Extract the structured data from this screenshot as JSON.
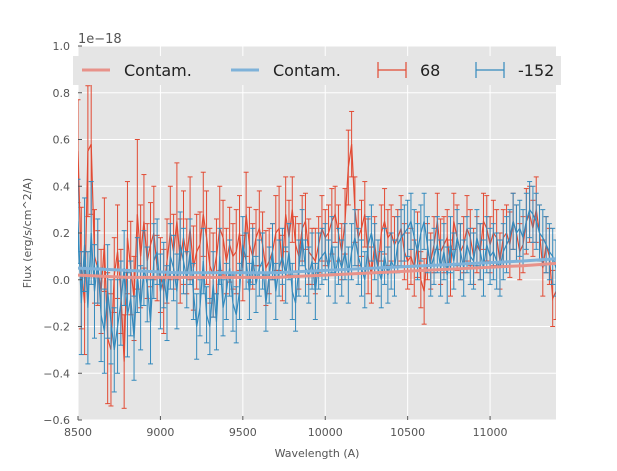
{
  "chart_data": {
    "type": "line",
    "xlabel": "Wavelength (A)",
    "ylabel": "Flux (erg/s/cm^2/A)",
    "offset_text": "1e−18",
    "xlim": [
      8500,
      11400
    ],
    "ylim": [
      -0.6,
      1.0
    ],
    "x_ticks": [
      8500,
      9000,
      9500,
      10000,
      10500,
      11000
    ],
    "x_tick_labels": [
      "8500",
      "9000",
      "9500",
      "10000",
      "10500",
      "11000"
    ],
    "y_ticks": [
      -0.6,
      -0.4,
      -0.2,
      0.0,
      0.2,
      0.4,
      0.6,
      0.8,
      1.0
    ],
    "y_tick_labels": [
      "−0.6",
      "−0.4",
      "−0.2",
      "0.0",
      "0.2",
      "0.4",
      "0.6",
      "0.8",
      "1.0"
    ],
    "grid": true,
    "legend_placement": "top",
    "legend": [
      {
        "label": "Contam.",
        "kind": "line",
        "color": "#E8928A"
      },
      {
        "label": "Contam.",
        "kind": "line",
        "color": "#7FB2D9"
      },
      {
        "label": "68",
        "kind": "errorbar",
        "color": "#E24A33"
      },
      {
        "label": "-152",
        "kind": "errorbar",
        "color": "#348ABD"
      }
    ],
    "series": [
      {
        "name": "68",
        "color": "#E24A33",
        "kind": "errorbar",
        "x": [
          8500,
          8520,
          8540,
          8560,
          8580,
          8600,
          8620,
          8640,
          8660,
          8680,
          8700,
          8720,
          8740,
          8760,
          8780,
          8800,
          8820,
          8840,
          8860,
          8880,
          8900,
          8920,
          8940,
          8960,
          8980,
          9000,
          9020,
          9040,
          9060,
          9080,
          9100,
          9120,
          9140,
          9160,
          9180,
          9200,
          9220,
          9240,
          9260,
          9280,
          9300,
          9320,
          9340,
          9360,
          9380,
          9400,
          9420,
          9440,
          9460,
          9480,
          9500,
          9520,
          9540,
          9560,
          9580,
          9600,
          9620,
          9640,
          9660,
          9680,
          9700,
          9720,
          9740,
          9760,
          9780,
          9800,
          9820,
          9840,
          9860,
          9880,
          9900,
          9920,
          9940,
          9960,
          9980,
          10000,
          10020,
          10040,
          10060,
          10080,
          10100,
          10120,
          10140,
          10160,
          10180,
          10200,
          10220,
          10240,
          10260,
          10280,
          10300,
          10320,
          10340,
          10360,
          10380,
          10400,
          10420,
          10440,
          10460,
          10480,
          10500,
          10520,
          10540,
          10560,
          10580,
          10600,
          10620,
          10640,
          10660,
          10680,
          10700,
          10720,
          10740,
          10760,
          10780,
          10800,
          10820,
          10840,
          10860,
          10880,
          10900,
          10920,
          10940,
          10960,
          10980,
          11000,
          11020,
          11040,
          11060,
          11080,
          11100,
          11120,
          11140,
          11160,
          11180,
          11200,
          11220,
          11240,
          11260,
          11280,
          11300,
          11320,
          11340,
          11360,
          11380,
          11400
        ],
        "y": [
          0.55,
          0.05,
          -0.1,
          0.55,
          0.58,
          0.1,
          0.05,
          -0.05,
          0.15,
          -0.25,
          -0.3,
          0.02,
          0.12,
          -0.05,
          -0.35,
          0.18,
          0.05,
          -0.08,
          0.28,
          0.1,
          0.25,
          0.08,
          0.15,
          0.2,
          0.05,
          0.02,
          -0.05,
          0.08,
          0.2,
          0.12,
          0.25,
          0.08,
          0.18,
          0.1,
          0.22,
          0.05,
          0.12,
          0.15,
          0.28,
          0.18,
          0.06,
          0.02,
          0.1,
          0.22,
          0.18,
          0.08,
          0.15,
          0.1,
          0.12,
          0.2,
          0.05,
          0.28,
          0.15,
          0.1,
          0.18,
          0.22,
          0.15,
          0.05,
          0.08,
          0.12,
          0.2,
          0.22,
          0.05,
          0.28,
          0.18,
          0.3,
          0.15,
          0.1,
          0.22,
          0.25,
          0.12,
          0.1,
          0.08,
          0.15,
          0.22,
          0.18,
          0.2,
          0.25,
          0.28,
          0.2,
          0.12,
          0.25,
          0.48,
          0.58,
          0.3,
          0.18,
          0.22,
          0.28,
          0.1,
          0.02,
          0.15,
          0.05,
          0.2,
          0.25,
          0.18,
          0.2,
          0.15,
          0.18,
          0.22,
          0.12,
          0.08,
          0.1,
          0.05,
          0.15,
          0.0,
          -0.05,
          0.12,
          0.08,
          0.15,
          0.25,
          0.12,
          0.15,
          0.18,
          0.05,
          0.25,
          0.18,
          0.12,
          0.15,
          0.22,
          0.18,
          0.1,
          0.15,
          0.12,
          0.25,
          0.22,
          0.15,
          0.2,
          0.18,
          0.08,
          0.18,
          0.2,
          0.15,
          0.25,
          0.2,
          0.12,
          0.15,
          0.25,
          0.28,
          0.22,
          0.3,
          0.2,
          0.05,
          0.15,
          0.1,
          -0.08,
          -0.05
        ],
        "err": [
          0.22,
          0.26,
          0.22,
          0.28,
          0.3,
          0.2,
          0.16,
          0.18,
          0.2,
          0.28,
          0.24,
          0.16,
          0.2,
          0.18,
          0.2,
          0.24,
          0.2,
          0.18,
          0.32,
          0.22,
          0.2,
          0.16,
          0.18,
          0.2,
          0.14,
          0.16,
          0.18,
          0.18,
          0.2,
          0.16,
          0.25,
          0.18,
          0.2,
          0.16,
          0.22,
          0.18,
          0.16,
          0.14,
          0.18,
          0.2,
          0.16,
          0.18,
          0.16,
          0.18,
          0.16,
          0.14,
          0.16,
          0.14,
          0.18,
          0.16,
          0.14,
          0.18,
          0.16,
          0.14,
          0.12,
          0.16,
          0.14,
          0.16,
          0.14,
          0.12,
          0.16,
          0.18,
          0.14,
          0.16,
          0.16,
          0.14,
          0.12,
          0.14,
          0.14,
          0.12,
          0.14,
          0.12,
          0.14,
          0.12,
          0.14,
          0.12,
          0.12,
          0.14,
          0.12,
          0.12,
          0.12,
          0.14,
          0.16,
          0.14,
          0.14,
          0.12,
          0.12,
          0.14,
          0.16,
          0.12,
          0.12,
          0.12,
          0.12,
          0.14,
          0.12,
          0.12,
          0.12,
          0.12,
          0.14,
          0.12,
          0.12,
          0.12,
          0.12,
          0.14,
          0.12,
          0.14,
          0.12,
          0.12,
          0.12,
          0.12,
          0.14,
          0.12,
          0.12,
          0.12,
          0.12,
          0.14,
          0.12,
          0.12,
          0.14,
          0.12,
          0.12,
          0.12,
          0.12,
          0.12,
          0.14,
          0.12,
          0.14,
          0.12,
          0.12,
          0.12,
          0.12,
          0.14,
          0.12,
          0.12,
          0.12,
          0.12,
          0.14,
          0.12,
          0.12,
          0.14,
          0.12,
          0.12,
          0.12,
          0.12,
          0.12,
          0.12
        ]
      },
      {
        "name": "-152",
        "color": "#348ABD",
        "kind": "errorbar",
        "x": [
          8500,
          8520,
          8540,
          8560,
          8580,
          8600,
          8620,
          8640,
          8660,
          8680,
          8700,
          8720,
          8740,
          8760,
          8780,
          8800,
          8820,
          8840,
          8860,
          8880,
          8900,
          8920,
          8940,
          8960,
          8980,
          9000,
          9020,
          9040,
          9060,
          9080,
          9100,
          9120,
          9140,
          9160,
          9180,
          9200,
          9220,
          9240,
          9260,
          9280,
          9300,
          9320,
          9340,
          9360,
          9380,
          9400,
          9420,
          9440,
          9460,
          9480,
          9500,
          9520,
          9540,
          9560,
          9580,
          9600,
          9620,
          9640,
          9660,
          9680,
          9700,
          9720,
          9740,
          9760,
          9780,
          9800,
          9820,
          9840,
          9860,
          9880,
          9900,
          9920,
          9940,
          9960,
          9980,
          10000,
          10020,
          10040,
          10060,
          10080,
          10100,
          10120,
          10140,
          10160,
          10180,
          10200,
          10220,
          10240,
          10260,
          10280,
          10300,
          10320,
          10340,
          10360,
          10380,
          10400,
          10420,
          10440,
          10460,
          10480,
          10500,
          10520,
          10540,
          10560,
          10580,
          10600,
          10620,
          10640,
          10660,
          10680,
          10700,
          10720,
          10740,
          10760,
          10780,
          10800,
          10820,
          10840,
          10860,
          10880,
          10900,
          10920,
          10940,
          10960,
          10980,
          11000,
          11020,
          11040,
          11060,
          11080,
          11100,
          11120,
          11140,
          11160,
          11180,
          11200,
          11220,
          11240,
          11260,
          11280,
          11300,
          11320,
          11340,
          11360,
          11380,
          11400
        ],
        "y": [
          0.25,
          -0.1,
          0.15,
          -0.12,
          0.2,
          -0.05,
          0.08,
          -0.15,
          -0.22,
          -0.05,
          -0.18,
          -0.3,
          -0.2,
          -0.1,
          0.05,
          -0.15,
          -0.08,
          -0.25,
          0.02,
          -0.12,
          0.05,
          -0.02,
          -0.18,
          0.08,
          0.12,
          -0.05,
          0.02,
          -0.1,
          0.1,
          0.05,
          -0.05,
          0.15,
          0.08,
          0.0,
          0.12,
          -0.05,
          -0.2,
          -0.12,
          0.08,
          -0.15,
          -0.2,
          -0.02,
          -0.18,
          0.1,
          -0.12,
          -0.05,
          0.05,
          -0.1,
          -0.15,
          -0.05,
          0.15,
          0.08,
          -0.05,
          0.1,
          -0.02,
          0.05,
          0.08,
          -0.1,
          0.02,
          0.12,
          -0.05,
          0.05,
          0.1,
          0.02,
          0.12,
          -0.05,
          -0.1,
          0.05,
          0.18,
          0.05,
          0.02,
          0.08,
          -0.05,
          0.08,
          0.1,
          0.12,
          0.05,
          0.15,
          0.02,
          0.1,
          0.05,
          0.12,
          0.02,
          0.12,
          0.18,
          0.1,
          0.05,
          0.0,
          0.15,
          0.2,
          0.12,
          0.05,
          0.0,
          0.1,
          0.02,
          0.08,
          0.05,
          0.15,
          0.18,
          0.2,
          0.22,
          0.25,
          0.18,
          0.12,
          0.2,
          0.25,
          0.15,
          0.05,
          0.1,
          0.15,
          0.05,
          0.12,
          0.02,
          0.15,
          0.08,
          0.18,
          0.12,
          0.05,
          0.15,
          0.1,
          0.08,
          0.18,
          0.12,
          0.05,
          0.15,
          0.1,
          0.12,
          0.08,
          0.05,
          0.12,
          0.15,
          0.18,
          0.25,
          0.2,
          0.22,
          0.18,
          0.25,
          0.3,
          0.28,
          0.25,
          0.2,
          0.18,
          0.15,
          0.12,
          0.1,
          0.05
        ],
        "err": [
          0.18,
          0.22,
          0.2,
          0.24,
          0.22,
          0.2,
          0.18,
          0.2,
          0.18,
          0.2,
          0.18,
          0.18,
          0.2,
          0.18,
          0.16,
          0.18,
          0.16,
          0.18,
          0.16,
          0.18,
          0.16,
          0.16,
          0.18,
          0.16,
          0.14,
          0.16,
          0.14,
          0.16,
          0.14,
          0.14,
          0.16,
          0.14,
          0.14,
          0.12,
          0.14,
          0.12,
          0.14,
          0.12,
          0.14,
          0.12,
          0.12,
          0.14,
          0.12,
          0.12,
          0.12,
          0.12,
          0.12,
          0.12,
          0.12,
          0.12,
          0.12,
          0.12,
          0.12,
          0.12,
          0.12,
          0.12,
          0.12,
          0.12,
          0.12,
          0.12,
          0.12,
          0.12,
          0.12,
          0.12,
          0.12,
          0.12,
          0.12,
          0.12,
          0.12,
          0.12,
          0.12,
          0.12,
          0.12,
          0.12,
          0.12,
          0.12,
          0.12,
          0.12,
          0.12,
          0.12,
          0.12,
          0.12,
          0.12,
          0.12,
          0.12,
          0.12,
          0.12,
          0.12,
          0.12,
          0.12,
          0.12,
          0.12,
          0.12,
          0.12,
          0.12,
          0.12,
          0.12,
          0.12,
          0.12,
          0.12,
          0.12,
          0.12,
          0.12,
          0.12,
          0.12,
          0.12,
          0.12,
          0.12,
          0.12,
          0.12,
          0.12,
          0.12,
          0.12,
          0.12,
          0.12,
          0.12,
          0.12,
          0.12,
          0.12,
          0.12,
          0.12,
          0.12,
          0.12,
          0.12,
          0.12,
          0.12,
          0.12,
          0.12,
          0.12,
          0.12,
          0.12,
          0.12,
          0.12,
          0.12,
          0.12,
          0.12,
          0.12,
          0.12,
          0.12,
          0.12,
          0.12,
          0.12,
          0.12,
          0.12,
          0.12,
          0.12
        ]
      },
      {
        "name": "Contam.",
        "color": "#E8928A",
        "kind": "line",
        "x": [
          8500,
          8800,
          9100,
          9400,
          9700,
          10000,
          10300,
          10600,
          10900,
          11200,
          11400
        ],
        "y": [
          0.02,
          0.01,
          0.01,
          0.01,
          0.01,
          0.02,
          0.03,
          0.04,
          0.05,
          0.06,
          0.07
        ]
      },
      {
        "name": "Contam.",
        "color": "#7FB2D9",
        "kind": "line",
        "x": [
          8500,
          8800,
          9100,
          9400,
          9700,
          10000,
          10300,
          10600,
          10900,
          11200,
          11400
        ],
        "y": [
          0.05,
          0.04,
          0.03,
          0.03,
          0.03,
          0.04,
          0.05,
          0.06,
          0.07,
          0.08,
          0.09
        ]
      }
    ]
  }
}
